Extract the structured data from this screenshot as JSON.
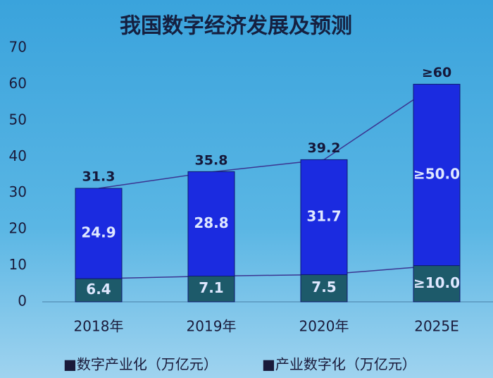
{
  "chart_data": {
    "type": "stacked_bar",
    "title": "我国数字经济发展及预测",
    "categories": [
      "2018年",
      "2019年",
      "2020年",
      "2025E"
    ],
    "series": [
      {
        "name": "■数字产业化（万亿元）",
        "color": "#1d5a6a",
        "values": [
          6.4,
          7.1,
          7.5,
          10.0
        ],
        "value_labels": [
          "6.4",
          "7.1",
          "7.5",
          "≥10.0"
        ]
      },
      {
        "name": "■产业数字化（万亿元）",
        "color": "#1b2be0",
        "values": [
          24.9,
          28.8,
          31.7,
          50.0
        ],
        "value_labels": [
          "24.9",
          "28.8",
          "31.7",
          "≥50.0"
        ]
      }
    ],
    "totals": {
      "values": [
        31.3,
        35.8,
        39.2,
        60
      ],
      "value_labels": [
        "31.3",
        "35.8",
        "39.2",
        "≥60"
      ]
    },
    "ylim": [
      0,
      70
    ],
    "yticks": [
      0,
      10,
      20,
      30,
      40,
      50,
      60,
      70
    ],
    "line_color": "#3b3591"
  }
}
